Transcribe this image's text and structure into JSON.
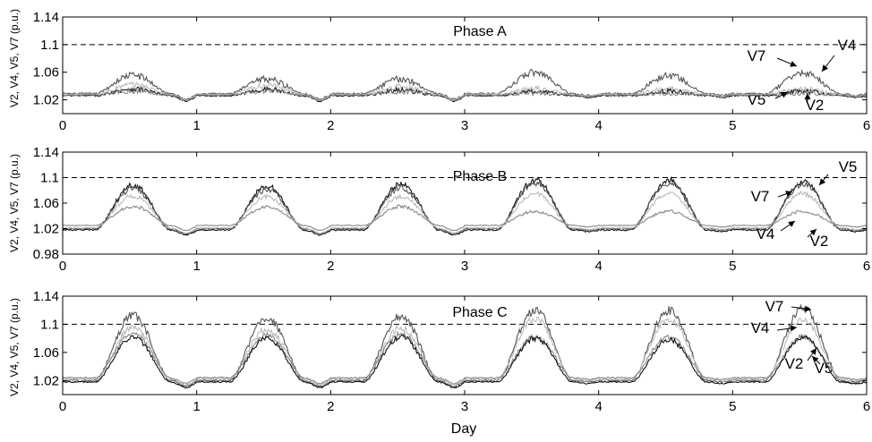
{
  "chart_data": [
    {
      "type": "line",
      "title": "Phase A",
      "ylabel": "V2, V4, V5, V7 (p.u.)",
      "xlabel": "",
      "xlim": [
        0,
        6
      ],
      "ylim": [
        1.0,
        1.14
      ],
      "xticks": [
        "0",
        "1",
        "2",
        "3",
        "4",
        "5",
        "6"
      ],
      "yticks": [
        "1.02",
        "1.06",
        "1.1",
        "1.14"
      ],
      "limit_line": 1.1,
      "series": [
        {
          "name": "V7",
          "color": "#555555",
          "base": 1.029,
          "amp": [
            0.027,
            0.021,
            0.021,
            0.031,
            0.026,
            0.03
          ],
          "noise": 0.004
        },
        {
          "name": "V4",
          "color": "#bbbbbb",
          "base": 1.028,
          "amp": [
            0.014,
            0.013,
            0.011,
            0.008,
            0.008,
            0.008
          ],
          "noise": 0.003
        },
        {
          "name": "V5",
          "color": "#111111",
          "base": 1.026,
          "amp": [
            0.01,
            0.009,
            0.008,
            0.006,
            0.006,
            0.006
          ],
          "noise": 0.003
        },
        {
          "name": "V2",
          "color": "#888888",
          "base": 1.027,
          "amp": [
            0.006,
            0.006,
            0.005,
            0.003,
            0.003,
            0.003
          ],
          "noise": 0.003
        }
      ],
      "annotations": [
        "V7",
        "V4",
        "V5",
        "V2"
      ]
    },
    {
      "type": "line",
      "title": "Phase B",
      "ylabel": "V2, V4, V5, V7 (p.u.)",
      "xlabel": "",
      "xlim": [
        0,
        6
      ],
      "ylim": [
        0.98,
        1.14
      ],
      "xticks": [
        "0",
        "1",
        "2",
        "3",
        "4",
        "5",
        "6"
      ],
      "yticks": [
        "0.98",
        "1.02",
        "1.06",
        "1.1",
        "1.14"
      ],
      "limit_line": 1.1,
      "series": [
        {
          "name": "V5",
          "color": "#111111",
          "base": 1.018,
          "amp": [
            0.07,
            0.068,
            0.071,
            0.078,
            0.078,
            0.076
          ],
          "noise": 0.004
        },
        {
          "name": "V7",
          "color": "#555555",
          "base": 1.02,
          "amp": [
            0.064,
            0.062,
            0.064,
            0.072,
            0.072,
            0.07
          ],
          "noise": 0.004
        },
        {
          "name": "V4",
          "color": "#bbbbbb",
          "base": 1.021,
          "amp": [
            0.05,
            0.049,
            0.05,
            0.055,
            0.055,
            0.054
          ],
          "noise": 0.003
        },
        {
          "name": "V2",
          "color": "#888888",
          "base": 1.025,
          "amp": [
            0.03,
            0.029,
            0.03,
            0.022,
            0.022,
            0.022
          ],
          "noise": 0.002
        }
      ],
      "annotations": [
        "V5",
        "V7",
        "V4",
        "V2"
      ]
    },
    {
      "type": "line",
      "title": "Phase C",
      "ylabel": "V2, V4, V5, V7 (p.u.)",
      "xlabel": "Day",
      "xlim": [
        0,
        6
      ],
      "ylim": [
        1.0,
        1.14
      ],
      "xticks": [
        "0",
        "1",
        "2",
        "3",
        "4",
        "5",
        "6"
      ],
      "yticks": [
        "1.02",
        "1.06",
        "1.1",
        "1.14"
      ],
      "limit_line": 1.1,
      "series": [
        {
          "name": "V7",
          "color": "#555555",
          "base": 1.02,
          "amp": [
            0.093,
            0.088,
            0.091,
            0.1,
            0.1,
            0.102
          ],
          "noise": 0.005
        },
        {
          "name": "V4",
          "color": "#bbbbbb",
          "base": 1.022,
          "amp": [
            0.074,
            0.071,
            0.073,
            0.086,
            0.086,
            0.085
          ],
          "noise": 0.004
        },
        {
          "name": "V2",
          "color": "#888888",
          "base": 1.024,
          "amp": [
            0.062,
            0.06,
            0.062,
            0.058,
            0.058,
            0.058
          ],
          "noise": 0.003
        },
        {
          "name": "V5",
          "color": "#111111",
          "base": 1.018,
          "amp": [
            0.064,
            0.062,
            0.064,
            0.062,
            0.06,
            0.064
          ],
          "noise": 0.003
        }
      ],
      "annotations": [
        "V7",
        "V4",
        "V2",
        "V5"
      ]
    }
  ]
}
